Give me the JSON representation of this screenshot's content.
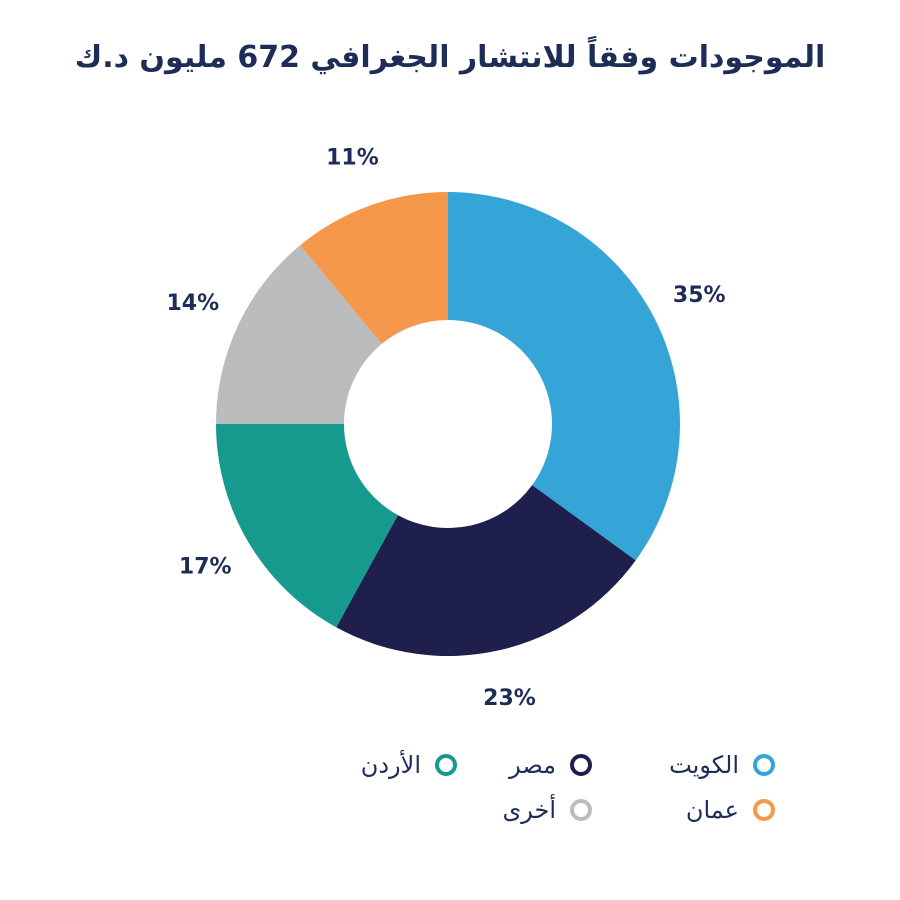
{
  "chart_data": {
    "type": "pie",
    "title": "الموجودات وفقاً للانتشار الجغرافي 672 مليون د.ك",
    "series": [
      {
        "name": "الكويت",
        "value": 35,
        "label": "35%",
        "color": "#35a4d7"
      },
      {
        "name": "مصر",
        "value": 23,
        "label": "23%",
        "color": "#1e1f4d"
      },
      {
        "name": "الأردن",
        "value": 17,
        "label": "17%",
        "color": "#169a8e"
      },
      {
        "name": "أخرى",
        "value": 14,
        "label": "14%",
        "color": "#bbbcbe"
      },
      {
        "name": "عمان",
        "value": 11,
        "label": "11%",
        "color": "#f6984b"
      }
    ],
    "legend_position": "bottom"
  }
}
